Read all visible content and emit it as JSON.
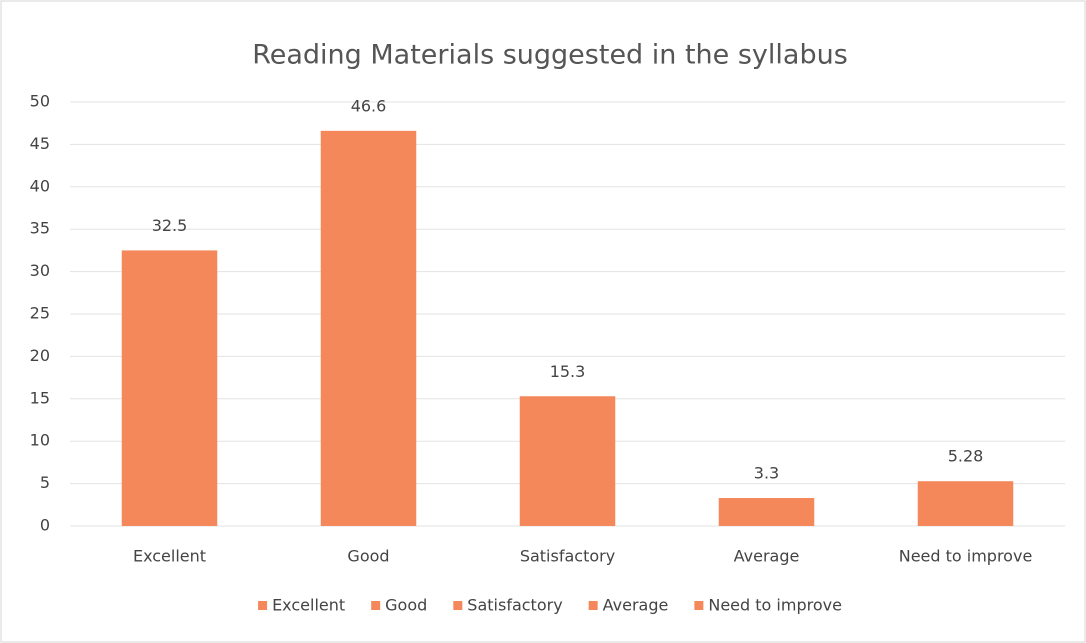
{
  "chart_data": {
    "type": "bar",
    "title": "Reading Materials suggested in the syllabus",
    "categories": [
      "Excellent",
      "Good",
      "Satisfactory",
      "Average",
      "Need to improve"
    ],
    "values": [
      32.5,
      46.6,
      15.3,
      3.3,
      5.28
    ],
    "color": "#f4885a",
    "ylim": [
      0,
      50
    ],
    "yticks": [
      0,
      5,
      10,
      15,
      20,
      25,
      30,
      35,
      40,
      45,
      50
    ],
    "grid": true,
    "legend": "bottom"
  }
}
